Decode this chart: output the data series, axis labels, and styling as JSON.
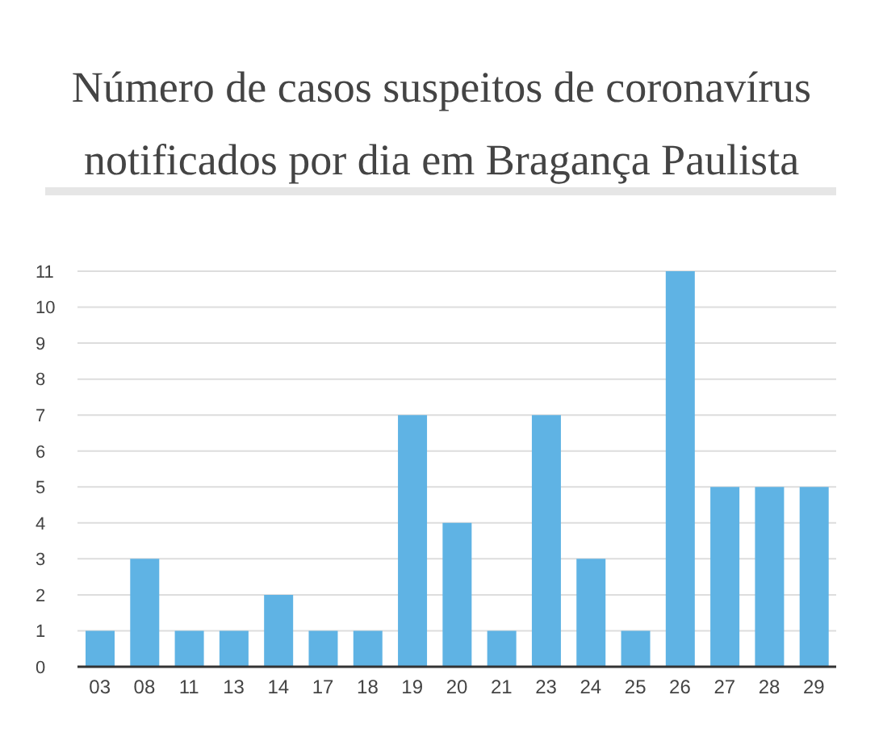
{
  "chart_data": {
    "type": "bar",
    "title": "Número de casos suspeitos de coronavírus notificados por dia em Bragança Paulista",
    "categories": [
      "03",
      "08",
      "11",
      "13",
      "14",
      "17",
      "18",
      "19",
      "20",
      "21",
      "23",
      "24",
      "25",
      "26",
      "27",
      "28",
      "29"
    ],
    "values": [
      1,
      3,
      1,
      1,
      2,
      1,
      1,
      7,
      4,
      1,
      7,
      3,
      1,
      11,
      5,
      5,
      5
    ],
    "color": "#5fb3e4",
    "ylim": [
      0,
      11
    ],
    "yticks": [
      0,
      1,
      2,
      3,
      4,
      5,
      6,
      7,
      8,
      9,
      10,
      11
    ],
    "grid": "y",
    "legend": false
  }
}
